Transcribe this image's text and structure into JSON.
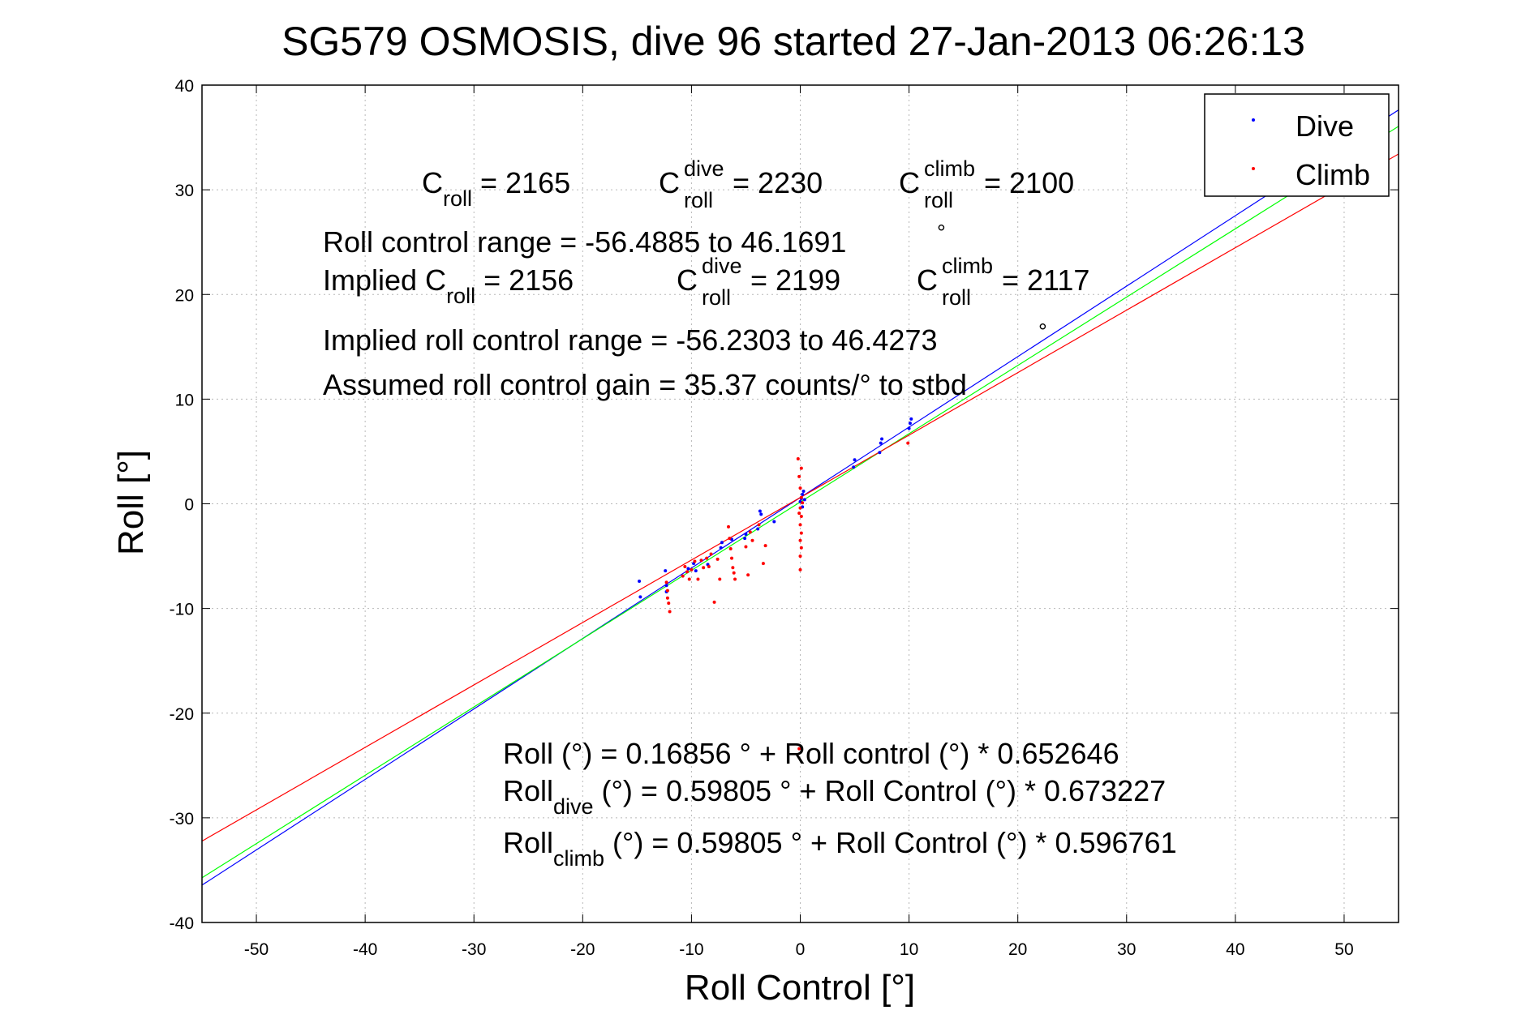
{
  "chart_data": {
    "type": "scatter",
    "title": "SG579 OSMOSIS, dive 96 started 27-Jan-2013 06:26:13",
    "xlabel": "Roll Control [°]",
    "ylabel": "Roll [°]",
    "xlim": [
      -55,
      55
    ],
    "ylim": [
      -40,
      40
    ],
    "x_ticks": [
      -50,
      -40,
      -30,
      -20,
      -10,
      0,
      10,
      20,
      30,
      40,
      50
    ],
    "y_ticks": [
      -40,
      -30,
      -20,
      -10,
      0,
      10,
      20,
      30,
      40
    ],
    "grid": true,
    "legend": {
      "placement": "top-right",
      "entries": [
        {
          "label": "Dive",
          "color": "#0000ff"
        },
        {
          "label": "Climb",
          "color": "#ff0000"
        }
      ]
    },
    "series": [
      {
        "name": "Dive",
        "color": "#0000ff",
        "points": [
          [
            -14.8,
            -7.4
          ],
          [
            -14.7,
            -8.9
          ],
          [
            -12.4,
            -6.4
          ],
          [
            -12.3,
            -7.8
          ],
          [
            -12.3,
            -8.4
          ],
          [
            -10.3,
            -6.2
          ],
          [
            -9.8,
            -5.7
          ],
          [
            -9.6,
            -6.4
          ],
          [
            -8.5,
            -5.8
          ],
          [
            -7.3,
            -4.2
          ],
          [
            -7.2,
            -3.7
          ],
          [
            -6.3,
            -3.4
          ],
          [
            -5.1,
            -3.3
          ],
          [
            -5.0,
            -2.9
          ],
          [
            -3.9,
            -2.4
          ],
          [
            -3.7,
            -0.7
          ],
          [
            -3.6,
            -1.0
          ],
          [
            -2.4,
            -1.7
          ],
          [
            0.0,
            0.2
          ],
          [
            0.1,
            0.5
          ],
          [
            0.2,
            0.9
          ],
          [
            0.3,
            1.2
          ],
          [
            0.2,
            -0.3
          ],
          [
            0.4,
            0.4
          ],
          [
            4.9,
            3.5
          ],
          [
            5.0,
            4.2
          ],
          [
            7.4,
            5.8
          ],
          [
            7.5,
            6.2
          ],
          [
            7.3,
            4.9
          ],
          [
            10.0,
            7.2
          ],
          [
            10.1,
            7.7
          ],
          [
            10.2,
            8.1
          ]
        ]
      },
      {
        "name": "Climb",
        "color": "#ff0000",
        "points": [
          [
            -12.3,
            -7.5
          ],
          [
            -12.2,
            -8.3
          ],
          [
            -12.2,
            -9.0
          ],
          [
            -12.1,
            -9.5
          ],
          [
            -12.0,
            -10.3
          ],
          [
            -10.8,
            -6.9
          ],
          [
            -10.6,
            -6.0
          ],
          [
            -10.4,
            -6.5
          ],
          [
            -10.2,
            -7.2
          ],
          [
            -10.0,
            -6.3
          ],
          [
            -9.7,
            -5.5
          ],
          [
            -9.4,
            -7.2
          ],
          [
            -9.1,
            -5.4
          ],
          [
            -8.9,
            -6.1
          ],
          [
            -8.6,
            -5.2
          ],
          [
            -8.4,
            -6.0
          ],
          [
            -8.2,
            -4.8
          ],
          [
            -7.9,
            -9.4
          ],
          [
            -7.6,
            -5.3
          ],
          [
            -7.4,
            -7.2
          ],
          [
            -6.6,
            -2.2
          ],
          [
            -6.5,
            -3.3
          ],
          [
            -6.4,
            -4.3
          ],
          [
            -6.3,
            -5.2
          ],
          [
            -6.2,
            -6.1
          ],
          [
            -6.1,
            -6.6
          ],
          [
            -6.0,
            -7.2
          ],
          [
            -5.0,
            -4.1
          ],
          [
            -4.8,
            -6.8
          ],
          [
            -4.6,
            -2.7
          ],
          [
            -4.4,
            -3.5
          ],
          [
            -3.8,
            -2.0
          ],
          [
            -3.4,
            -5.7
          ],
          [
            -3.2,
            -4.0
          ],
          [
            -0.2,
            4.3
          ],
          [
            -0.1,
            2.6
          ],
          [
            0.0,
            1.5
          ],
          [
            0.1,
            0.6
          ],
          [
            0.0,
            -0.4
          ],
          [
            0.1,
            -1.2
          ],
          [
            0.0,
            -2.0
          ],
          [
            0.1,
            -2.8
          ],
          [
            0.0,
            -3.5
          ],
          [
            0.1,
            -4.2
          ],
          [
            0.0,
            -5.0
          ],
          [
            0.0,
            -6.3
          ],
          [
            0.1,
            3.4
          ],
          [
            -0.1,
            -0.9
          ],
          [
            0.2,
            0.1
          ],
          [
            -0.1,
            -23.4
          ],
          [
            9.9,
            5.8
          ]
        ]
      }
    ],
    "fit_lines": [
      {
        "color": "#0000ff",
        "intercept": 0.59805,
        "slope": 0.673227
      },
      {
        "color": "#00ff00",
        "intercept": 0.16856,
        "slope": 0.652646
      },
      {
        "color": "#ff0000",
        "intercept": 0.59805,
        "slope": 0.596761
      }
    ]
  },
  "annotations": {
    "c_roll": {
      "main": "C",
      "sub": "roll",
      "value": " = 2165"
    },
    "c_roll_dive": {
      "main": "C",
      "sup": "dive",
      "sub": "roll",
      "value": " = 2230"
    },
    "c_roll_climb": {
      "main": "C",
      "sup": "climb",
      "sub": "roll",
      "value": " = 2100"
    },
    "roll_control_range": "Roll control range = -56.4885 to 46.1691",
    "implied_c_roll": {
      "prefix": "Implied C",
      "sub": "roll",
      "value": " = 2156"
    },
    "implied_c_roll_dive": {
      "main": "C",
      "sup": "dive",
      "sub": "roll",
      "value": " = 2199"
    },
    "implied_c_roll_climb": {
      "main": "C",
      "sup": "climb",
      "sub": "roll",
      "value": " = 2117"
    },
    "implied_range": "Implied roll control range = -56.2303 to 46.4273",
    "gain": "Assumed roll control gain = 35.37 counts/° to stbd",
    "degree_glyph": "°",
    "fit_all": {
      "text": "Roll (°) = 0.16856 ° + Roll control (°) * 0.652646"
    },
    "fit_dive": {
      "main": "Roll",
      "sub": "dive",
      "rest": " (°) = 0.59805 ° + Roll Control (°) * 0.673227"
    },
    "fit_climb": {
      "main": "Roll",
      "sub": "climb",
      "rest": " (°) = 0.59805 ° + Roll Control (°) * 0.596761"
    }
  }
}
